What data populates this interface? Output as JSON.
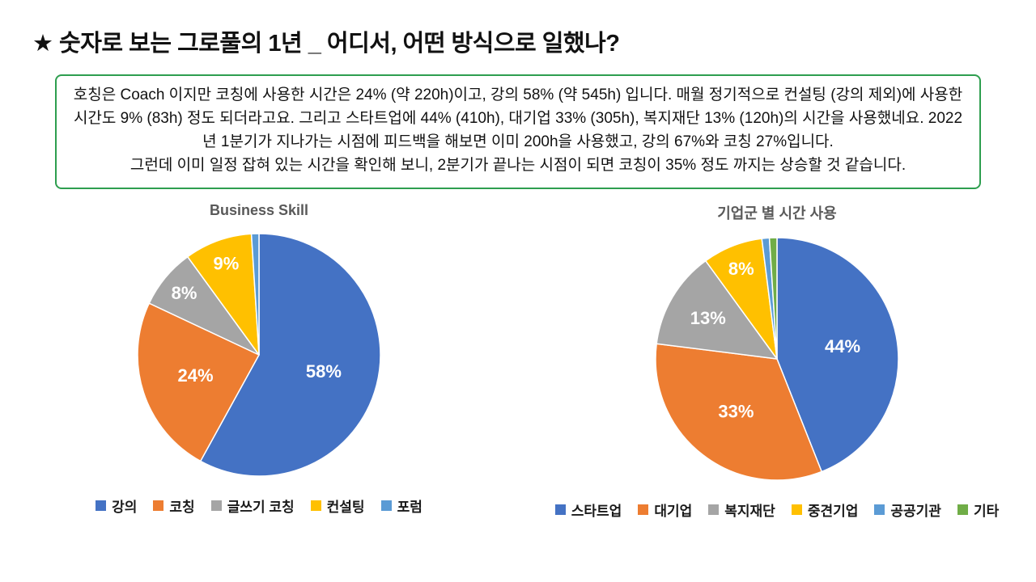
{
  "header": {
    "title": "★ 숫자로 보는 그로풀의 1년 _ 어디서, 어떤 방식으로 일했나?"
  },
  "summary": {
    "border_color": "#2E9E4F",
    "paragraphs": [
      "호칭은 Coach 이지만 코칭에 사용한 시간은 24% (약 220h)이고, 강의 58% (약 545h) 입니다. 매월 정기적으로 컨설팅 (강의 제외)에 사용한 시간도 9% (83h) 정도 되더라고요. 그리고 스타트업에 44% (410h), 대기업 33% (305h), 복지재단 13% (120h)의 시간을 사용했네요. 2022년 1분기가 지나가는 시점에 피드백을 해보면 이미 200h을 사용했고, 강의 67%와 코칭 27%입니다.",
      "그런데 이미 일정 잡혀 있는 시간을 확인해 보니, 2분기가 끝나는 시점이 되면 코칭이 35% 정도 까지는 상승할 것 같습니다."
    ]
  },
  "chart_data": [
    {
      "type": "pie",
      "title": "Business Skill",
      "labels": [
        "강의",
        "코칭",
        "글쓰기 코칭",
        "컨설팅",
        "포럼"
      ],
      "values": [
        58,
        24,
        8,
        9,
        1
      ],
      "colors": [
        "#4472C4",
        "#ED7D31",
        "#A5A5A5",
        "#FFC000",
        "#5B9BD5"
      ],
      "data_labels": [
        "58%",
        "24%",
        "8%",
        "9%",
        ""
      ],
      "start_angle_deg": 0,
      "direction": "clockwise",
      "legend_position": "bottom"
    },
    {
      "type": "pie",
      "title": "기업군 별 시간 사용",
      "labels": [
        "스타트업",
        "대기업",
        "복지재단",
        "중견기업",
        "공공기관",
        "기타"
      ],
      "values": [
        44,
        33,
        13,
        8,
        1,
        1
      ],
      "colors": [
        "#4472C4",
        "#ED7D31",
        "#A5A5A5",
        "#FFC000",
        "#5B9BD5",
        "#70AD47"
      ],
      "data_labels": [
        "44%",
        "33%",
        "13%",
        "8%",
        "",
        ""
      ],
      "start_angle_deg": 0,
      "direction": "clockwise",
      "legend_position": "bottom"
    }
  ]
}
